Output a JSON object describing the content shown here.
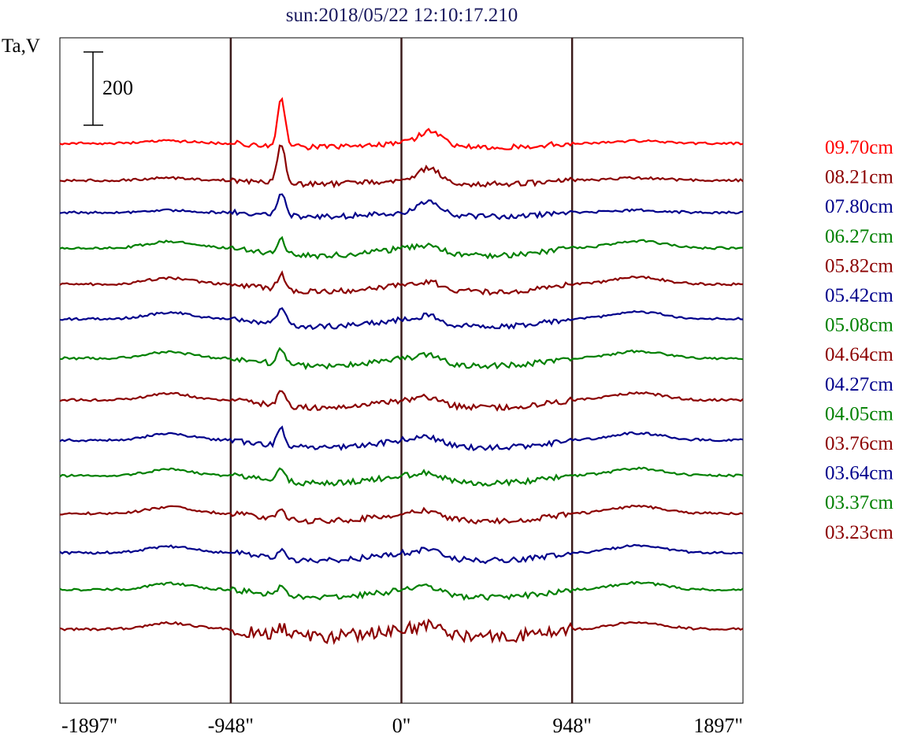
{
  "title": "sun:2018/05/22 12:10:17.210",
  "chart_data": {
    "type": "line",
    "title": "sun:2018/05/22 12:10:17.210",
    "xlabel": "",
    "ylabel": "Ta,V",
    "x_ticks": [
      "-1897\"",
      "-948\"",
      "0\"",
      "948\"",
      "1897\""
    ],
    "x_tick_values": [
      -1897,
      -948,
      0,
      948,
      1897
    ],
    "xlim": [
      -1897,
      1897
    ],
    "vertical_markers": [
      -948,
      0,
      948
    ],
    "scale_bar": {
      "label": "200",
      "value": 200
    },
    "legend_position": "right",
    "grid": false,
    "series": [
      {
        "name": "09.70cm",
        "color": "#ff0000"
      },
      {
        "name": "08.21cm",
        "color": "#8b0000"
      },
      {
        "name": "07.80cm",
        "color": "#00008b"
      },
      {
        "name": "06.27cm",
        "color": "#008000"
      },
      {
        "name": "05.82cm",
        "color": "#8b0000"
      },
      {
        "name": "05.42cm",
        "color": "#00008b"
      },
      {
        "name": "05.08cm",
        "color": "#008000"
      },
      {
        "name": "04.64cm",
        "color": "#8b0000"
      },
      {
        "name": "04.27cm",
        "color": "#00008b"
      },
      {
        "name": "04.05cm",
        "color": "#008000"
      },
      {
        "name": "03.76cm",
        "color": "#8b0000"
      },
      {
        "name": "03.64cm",
        "color": "#00008b"
      },
      {
        "name": "03.37cm",
        "color": "#008000"
      },
      {
        "name": "03.23cm",
        "color": "#8b0000"
      }
    ]
  }
}
